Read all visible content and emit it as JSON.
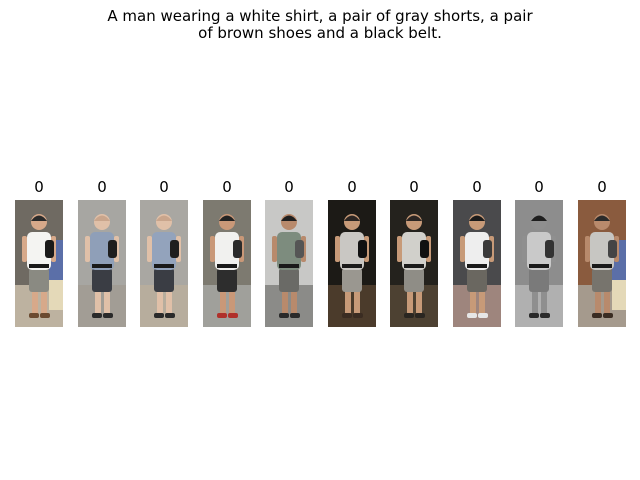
{
  "caption_line1": "A man wearing a white shirt, a pair of gray shorts, a pair",
  "caption_line2": "of brown shoes and a black belt.",
  "gallery": [
    {
      "score": "0",
      "bg": "#6f6a62",
      "floor": "#bdb2a0",
      "shirt": "#f4f4f2",
      "pants": "#8a8a82",
      "skin": "#d7a98a",
      "hair": "#2a2a2a",
      "shoe": "#6b4a30",
      "bag": "#1a1a1a",
      "companion": true
    },
    {
      "score": "0",
      "bg": "#a7a6a2",
      "floor": "#a29d95",
      "shirt": "#8f9fb8",
      "pants": "#3a3d44",
      "skin": "#e0c0a8",
      "hair": "#c9a58c",
      "shoe": "#2a2a2a",
      "bag": "#1e1e1e",
      "companion": false
    },
    {
      "score": "0",
      "bg": "#a9a7a2",
      "floor": "#b7ad9d",
      "shirt": "#93a3bc",
      "pants": "#3a3d44",
      "skin": "#e0c0a8",
      "hair": "#c9a58c",
      "shoe": "#2a2a2a",
      "bag": "#1e1e1e",
      "companion": false
    },
    {
      "score": "0",
      "bg": "#7d7a70",
      "floor": "#a0a09b",
      "shirt": "#f1f1ef",
      "pants": "#2d2d2d",
      "skin": "#c99878",
      "hair": "#222222",
      "shoe": "#b0302a",
      "bag": "#2b2b2b",
      "companion": false
    },
    {
      "score": "0",
      "bg": "#c8c8c6",
      "floor": "#8b8b88",
      "shirt": "#7d8c7e",
      "pants": "#6a6a66",
      "skin": "#b88a6c",
      "hair": "#1f1f1f",
      "shoe": "#2a2a2a",
      "bag": "#555555",
      "companion": false
    },
    {
      "score": "0",
      "bg": "#1c1a16",
      "floor": "#4b3b2b",
      "shirt": "#c9c7c3",
      "pants": "#9a9790",
      "skin": "#c79a78",
      "hair": "#2b2522",
      "shoe": "#3a2c22",
      "bag": "#111111",
      "companion": false
    },
    {
      "score": "0",
      "bg": "#24221d",
      "floor": "#4d4132",
      "shirt": "#d1d0cb",
      "pants": "#8f8d86",
      "skin": "#c79a78",
      "hair": "#2b2522",
      "shoe": "#2a2621",
      "bag": "#111111",
      "companion": false
    },
    {
      "score": "0",
      "bg": "#4a4a4c",
      "floor": "#9e857d",
      "shirt": "#eeeeee",
      "pants": "#6a6760",
      "skin": "#c79a78",
      "hair": "#1a1a1a",
      "shoe": "#e6e6e6",
      "bag": "#3a3a3a",
      "companion": false
    },
    {
      "score": "0",
      "bg": "#8d8d8d",
      "floor": "#b0b0b0",
      "shirt": "#c9c9c9",
      "pants": "#7a7a7a",
      "skin": "#8f8f8f",
      "hair": "#1e1e1e",
      "shoe": "#2a2a2a",
      "bag": "#333333",
      "companion": false
    },
    {
      "score": "0",
      "bg": "#8a5b3e",
      "floor": "#a59a8d",
      "shirt": "#c7c6c2",
      "pants": "#77746d",
      "skin": "#b88a6c",
      "hair": "#2a2a2a",
      "shoe": "#3a2c22",
      "bag": "#444444",
      "companion": true
    }
  ]
}
